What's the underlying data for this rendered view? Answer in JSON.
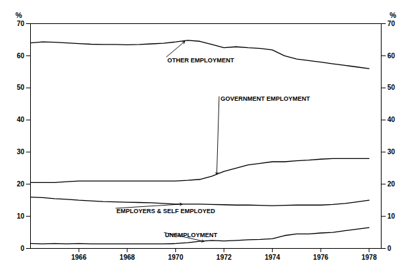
{
  "chart_data": {
    "type": "line",
    "x": [
      1964.0,
      1964.5,
      1965.0,
      1965.5,
      1966.0,
      1966.5,
      1967.0,
      1967.5,
      1968.0,
      1968.5,
      1969.0,
      1969.5,
      1970.0,
      1970.5,
      1971.0,
      1971.5,
      1972.0,
      1972.5,
      1973.0,
      1973.5,
      1974.0,
      1974.5,
      1975.0,
      1975.5,
      1976.0,
      1976.5,
      1977.0,
      1977.5,
      1978.0
    ],
    "series": [
      {
        "values": [
          64.0,
          64.3,
          64.2,
          64.0,
          63.8,
          63.6,
          63.5,
          63.5,
          63.4,
          63.5,
          63.7,
          63.9,
          64.3,
          64.8,
          64.5,
          63.5,
          62.5,
          62.8,
          62.5,
          62.3,
          61.8,
          60.0,
          59.0,
          58.5,
          58.0,
          57.5,
          57.0,
          56.5,
          56.0
        ]
      },
      {
        "values": [
          20.5,
          20.5,
          20.5,
          20.8,
          21.0,
          21.0,
          21.0,
          21.0,
          21.0,
          21.0,
          21.0,
          21.0,
          21.0,
          21.2,
          21.5,
          22.5,
          24.0,
          25.0,
          26.0,
          26.5,
          27.0,
          27.0,
          27.3,
          27.5,
          27.8,
          28.0,
          28.0,
          28.0,
          28.0
        ]
      },
      {
        "values": [
          16.0,
          15.8,
          15.5,
          15.3,
          15.0,
          14.8,
          14.6,
          14.5,
          14.4,
          14.3,
          14.2,
          14.0,
          13.8,
          13.8,
          13.8,
          13.7,
          13.6,
          13.5,
          13.5,
          13.4,
          13.3,
          13.4,
          13.5,
          13.5,
          13.5,
          13.7,
          14.0,
          14.5,
          15.0
        ]
      },
      {
        "values": [
          1.5,
          1.4,
          1.5,
          1.4,
          1.5,
          1.4,
          1.4,
          1.4,
          1.4,
          1.4,
          1.4,
          1.4,
          1.5,
          1.8,
          2.2,
          2.5,
          2.3,
          2.5,
          2.7,
          2.8,
          3.0,
          4.0,
          4.5,
          4.5,
          4.8,
          5.0,
          5.5,
          6.0,
          6.5
        ]
      }
    ],
    "color": "#000000",
    "xlim": [
      1964.0,
      1978.5
    ],
    "xticks": [
      1966,
      1968,
      1970,
      1972,
      1974,
      1976,
      1978
    ],
    "ylim": [
      0,
      70
    ],
    "yticks": [
      0,
      10,
      20,
      30,
      40,
      50,
      60,
      70
    ],
    "ylabel": "%",
    "y2label": "%",
    "grid": false,
    "annotations": [
      {
        "text": "OTHER EMPLOYMENT",
        "xy": [
          1970.4,
          64.6
        ],
        "xytext": [
          1969.6,
          59.5
        ]
      },
      {
        "text": "GOVERNMENT EMPLOYMENT",
        "xy": [
          1971.7,
          22.8
        ],
        "xytext": [
          1971.8,
          47.5
        ]
      },
      {
        "text": "EMPLOYERS & SELF EMPLOYED",
        "xy": [
          1970.3,
          13.8
        ],
        "xytext": [
          1967.5,
          12.5
        ]
      },
      {
        "text": "UNEMPLOYMENT",
        "xy": [
          1971.2,
          2.15
        ],
        "xytext": [
          1969.5,
          5.0
        ]
      }
    ]
  }
}
